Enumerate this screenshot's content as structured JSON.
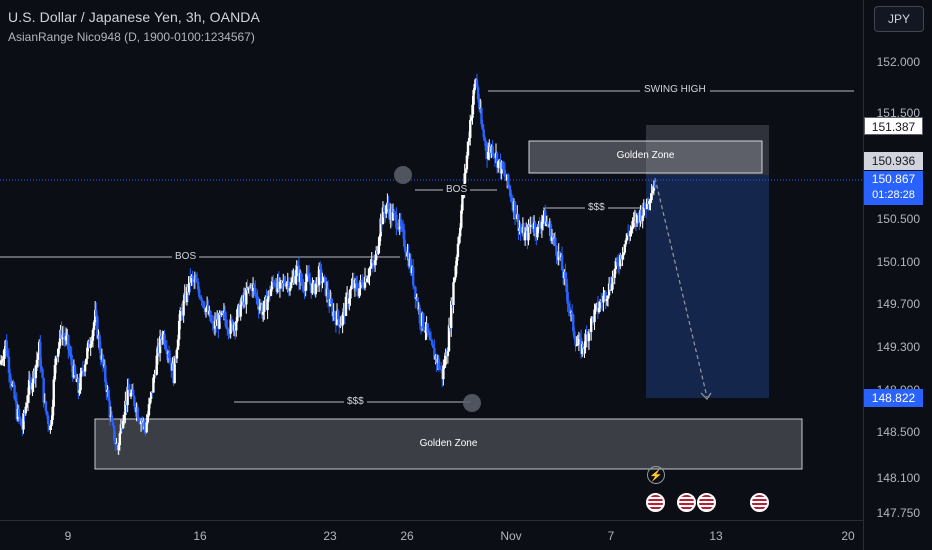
{
  "header": {
    "title": "U.S. Dollar / Japanese Yen, 3h, OANDA",
    "indicator": "AsianRange Nico948 (D, 1900-0100:1234567)"
  },
  "currency_button": "JPY",
  "price_axis": {
    "labels": [
      "152.000",
      "151.500",
      "150.500",
      "150.100",
      "149.700",
      "149.300",
      "148.900",
      "148.500",
      "148.100",
      "147.750"
    ],
    "tags": {
      "tp_top": "151.387",
      "entry": "150.936",
      "last_price": "150.867",
      "countdown": "01:28:28",
      "target": "148.822"
    }
  },
  "time_axis": {
    "labels": [
      "9",
      "16",
      "23",
      "26",
      "Nov",
      "7",
      "13",
      "20"
    ]
  },
  "annotations": {
    "swing_high": "SWING HIGH",
    "golden_zone_upper": "Golden Zone",
    "golden_zone_lower": "Golden Zone",
    "bos_upper": "BOS",
    "bos_lower": "BOS",
    "liquidity_upper": "$$$",
    "liquidity_lower": "$$$"
  },
  "colors": {
    "background": "#0c0e15",
    "bull_candle": "#ffffff",
    "bear_candle": "#2962ff",
    "short_zone": "#1a2d5a",
    "stop_zone": "#3a3d46",
    "last_price": "#2962ff"
  },
  "icons": [
    "lightning-icon",
    "us-flag-icon"
  ],
  "chart_data": {
    "type": "candlestick",
    "symbol": "USDJPY",
    "timeframe": "3h",
    "ylim": [
      147.7,
      152.3
    ],
    "key_levels": {
      "swing_high": 151.85,
      "golden_zone_upper": [
        150.95,
        151.25
      ],
      "golden_zone_lower": [
        148.15,
        148.6
      ],
      "bos_upper": 150.72,
      "bos_lower": 150.12,
      "liquidity_upper": 150.55,
      "liquidity_lower": 148.78,
      "short_entry": 150.936,
      "short_target": 148.822,
      "short_stop": 151.387,
      "last_price": 150.867
    },
    "price_path": [
      149.15,
      149.35,
      149.0,
      148.7,
      148.55,
      148.9,
      149.05,
      149.3,
      148.75,
      148.55,
      149.25,
      149.45,
      149.35,
      149.1,
      148.9,
      149.15,
      149.35,
      149.6,
      149.25,
      148.95,
      148.55,
      148.35,
      148.7,
      148.9,
      148.8,
      148.65,
      148.55,
      148.85,
      149.2,
      149.45,
      149.3,
      149.05,
      149.55,
      149.75,
      149.95,
      149.9,
      149.8,
      149.65,
      149.5,
      149.55,
      149.6,
      149.5,
      149.55,
      149.7,
      149.8,
      149.9,
      149.75,
      149.65,
      149.8,
      149.95,
      149.85,
      149.95,
      149.9,
      150.05,
      149.9,
      149.95,
      149.85,
      150.0,
      149.9,
      149.7,
      149.6,
      149.55,
      149.75,
      149.9,
      149.85,
      149.95,
      150.05,
      150.1,
      150.5,
      150.65,
      150.55,
      150.5,
      150.35,
      150.15,
      149.9,
      149.6,
      149.5,
      149.3,
      149.2,
      149.05,
      149.35,
      149.9,
      150.4,
      150.9,
      151.45,
      151.85,
      151.4,
      151.15,
      151.2,
      151.05,
      150.95,
      150.8,
      150.6,
      150.4,
      150.35,
      150.5,
      150.4,
      150.55,
      150.45,
      150.3,
      150.15,
      149.9,
      149.6,
      149.35,
      149.3,
      149.45,
      149.6,
      149.7,
      149.8,
      149.9,
      150.05,
      150.2,
      150.35,
      150.45,
      150.55,
      150.6,
      150.75,
      150.87
    ]
  }
}
